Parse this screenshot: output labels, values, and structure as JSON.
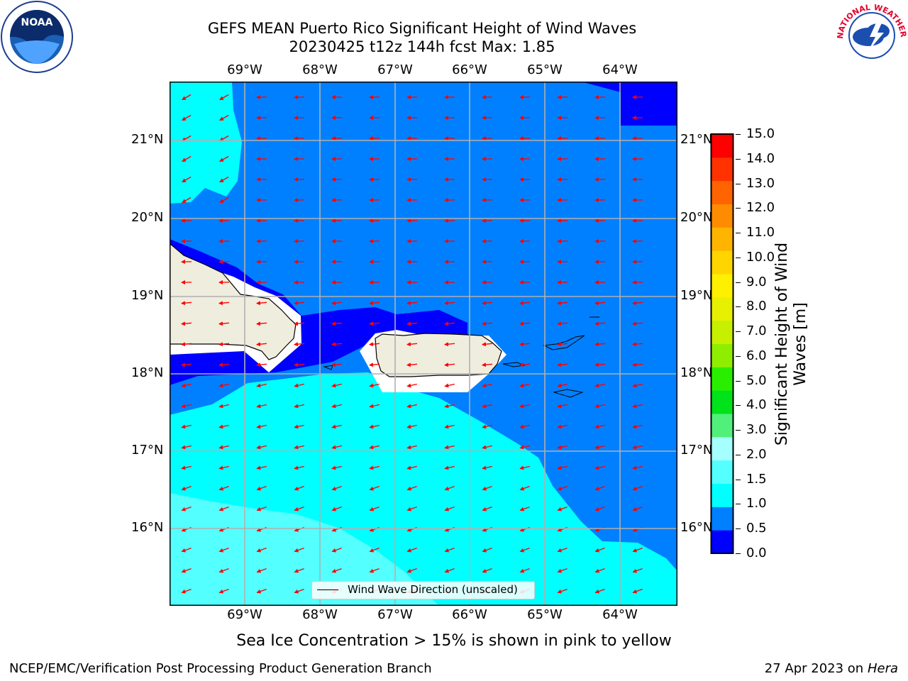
{
  "title": {
    "line1": "GEFS MEAN Puerto Rico Significant Height of Wind Waves",
    "line2": "20230425 t12z 144h fcst   Max: 1.85"
  },
  "map": {
    "lon_labels": [
      "69°W",
      "68°W",
      "67°W",
      "66°W",
      "65°W",
      "64°W"
    ],
    "lat_labels": [
      "21°N",
      "20°N",
      "19°N",
      "18°N",
      "17°N",
      "16°N"
    ],
    "extent_lon": [
      -69.98,
      -63.25
    ],
    "extent_lat": [
      15.0,
      21.75
    ],
    "legend_label": "Wind Wave Direction (unscaled)",
    "arrow_color": "#ff0000",
    "land_color": "#efedde"
  },
  "colorbar": {
    "title": "Significant Height of Wind Waves [m]",
    "ticks": [
      "15.0",
      "14.0",
      "13.0",
      "12.0",
      "11.0",
      "10.0",
      "9.0",
      "8.0",
      "7.0",
      "6.0",
      "5.0",
      "4.0",
      "3.0",
      "2.0",
      "1.5",
      "1.0",
      "0.5",
      "0.0"
    ],
    "colors": [
      "#0000ff",
      "#0080ff",
      "#00ffff",
      "#54ffff",
      "#a6ffff",
      "#50f07a",
      "#00e21a",
      "#2aee00",
      "#8fee00",
      "#c6f000",
      "#e6f000",
      "#fff000",
      "#ffd500",
      "#ffb400",
      "#ff8c00",
      "#ff6400",
      "#ff3200",
      "#ff0000"
    ]
  },
  "caption": "Sea Ice Concentration > 15% is shown in pink to yellow",
  "footer": {
    "left": "NCEP/EMC/Verification Post Processing Product Generation Branch",
    "date": "27 Apr 2023 on ",
    "machine": "Hera"
  },
  "logos": {
    "noaa": "NOAA",
    "nws": "NATIONAL WEATHER SERVICE"
  }
}
